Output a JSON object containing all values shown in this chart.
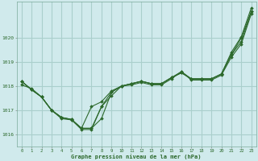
{
  "title": "Graphe pression niveau de la mer (hPa)",
  "background_color": "#d0eaec",
  "line_color": "#2d6a2d",
  "grid_color": "#aacfcc",
  "xlim": [
    -0.5,
    23.5
  ],
  "ylim": [
    1015.5,
    1021.5
  ],
  "yticks": [
    1016,
    1017,
    1018,
    1019,
    1020
  ],
  "xticks": [
    0,
    1,
    2,
    3,
    4,
    5,
    6,
    7,
    8,
    9,
    10,
    11,
    12,
    13,
    14,
    15,
    16,
    17,
    18,
    19,
    20,
    21,
    22,
    23
  ],
  "series": [
    {
      "x": [
        0,
        1,
        2,
        3,
        4,
        5,
        6,
        7,
        8,
        9,
        10,
        11,
        12,
        13,
        14,
        15,
        16,
        17,
        18,
        19,
        20,
        21,
        22,
        23
      ],
      "y": [
        1018.2,
        1017.85,
        1017.55,
        1017.0,
        1016.65,
        1016.6,
        1016.2,
        1016.2,
        1017.15,
        1017.75,
        1018.0,
        1018.1,
        1018.2,
        1018.1,
        1018.1,
        1018.35,
        1018.55,
        1018.3,
        1018.3,
        1018.3,
        1018.5,
        1019.4,
        1020.05,
        1021.25
      ]
    },
    {
      "x": [
        0,
        1,
        2,
        3,
        4,
        5,
        6,
        7,
        8,
        9,
        10,
        11,
        12,
        13,
        14,
        15,
        16,
        17,
        18,
        19,
        20,
        21,
        22,
        23
      ],
      "y": [
        1018.05,
        1017.9,
        1017.55,
        1017.0,
        1016.7,
        1016.6,
        1016.25,
        1016.25,
        1016.65,
        1017.75,
        1018.0,
        1018.05,
        1018.15,
        1018.05,
        1018.05,
        1018.3,
        1018.6,
        1018.25,
        1018.25,
        1018.25,
        1018.45,
        1019.2,
        1019.75,
        1021.0
      ]
    },
    {
      "x": [
        0,
        1,
        2,
        3,
        4,
        5,
        6,
        7,
        8,
        9,
        10,
        11,
        12,
        13,
        14,
        15,
        16,
        17,
        18,
        19,
        20,
        21,
        22,
        23
      ],
      "y": [
        1018.2,
        1017.85,
        1017.55,
        1017.0,
        1016.7,
        1016.62,
        1016.25,
        1017.15,
        1017.35,
        1017.8,
        1018.0,
        1018.1,
        1018.2,
        1018.1,
        1018.1,
        1018.35,
        1018.55,
        1018.3,
        1018.3,
        1018.3,
        1018.5,
        1019.3,
        1019.85,
        1021.1
      ]
    },
    {
      "x": [
        0,
        1,
        2,
        3,
        4,
        5,
        6,
        7,
        8,
        9,
        10,
        11,
        12,
        13,
        14,
        15,
        16,
        17,
        18,
        19,
        20,
        21,
        22,
        23
      ],
      "y": [
        1018.2,
        1017.85,
        1017.55,
        1017.0,
        1016.7,
        1016.62,
        1016.25,
        1016.25,
        1017.15,
        1017.6,
        1018.0,
        1018.1,
        1018.2,
        1018.1,
        1018.1,
        1018.35,
        1018.6,
        1018.3,
        1018.3,
        1018.3,
        1018.5,
        1019.3,
        1020.0,
        1021.1
      ]
    }
  ]
}
